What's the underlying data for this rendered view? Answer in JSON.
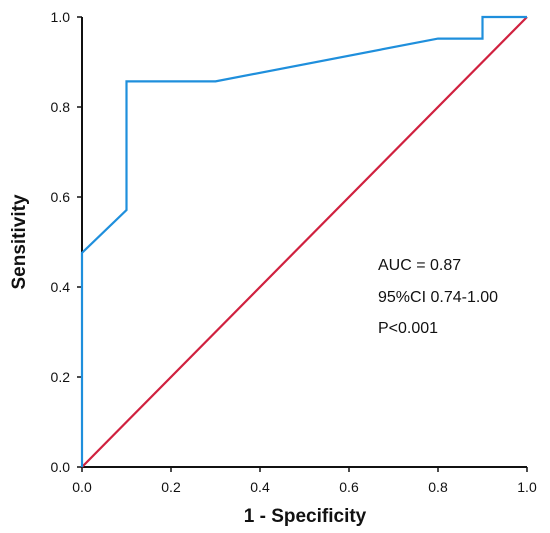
{
  "chart_data": {
    "type": "line",
    "title": "",
    "xlabel": "1 - Specificity",
    "ylabel": "Sensitivity",
    "xlim": [
      0,
      1
    ],
    "ylim": [
      0,
      1
    ],
    "xticks": [
      "0.0",
      "0.2",
      "0.4",
      "0.6",
      "0.8",
      "1.0"
    ],
    "yticks": [
      "0.0",
      "0.2",
      "0.4",
      "0.6",
      "0.8",
      "1.0"
    ],
    "grid": false,
    "legend": "none",
    "series": [
      {
        "color": "#1f8fdc",
        "x": [
          0,
          0,
          0.1,
          0.1,
          0.3,
          0.8,
          0.9,
          0.9,
          1.0
        ],
        "y": [
          0,
          0.476,
          0.571,
          0.857,
          0.857,
          0.952,
          0.952,
          1.0,
          1.0
        ]
      },
      {
        "color": "#d0213f",
        "x": [
          0,
          1
        ],
        "y": [
          0,
          1
        ]
      }
    ],
    "annotations": [
      "AUC = 0.87",
      "95%CI 0.74-1.00",
      "P<0.001"
    ]
  }
}
